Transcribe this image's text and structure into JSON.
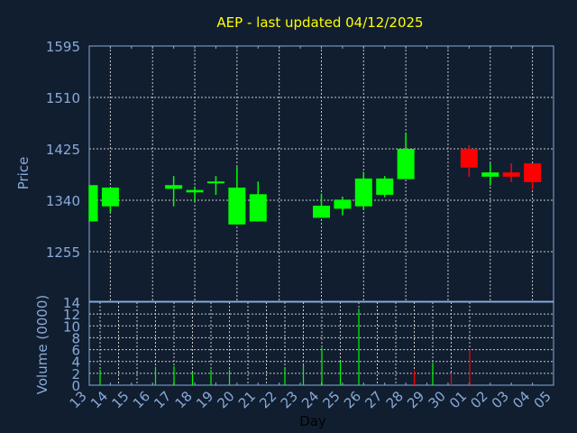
{
  "chart_data": [
    {
      "type": "candlestick",
      "title": "AEP - last updated 04/12/2025",
      "ylabel": "Price",
      "xlabel": "Day",
      "ylim": [
        1173,
        1595
      ],
      "yticks": [
        1595,
        1510,
        1425,
        1340,
        1255
      ],
      "xticks": [
        "13",
        "14",
        "15",
        "16",
        "17",
        "18",
        "19",
        "20",
        "21",
        "22",
        "23",
        "24",
        "25",
        "26",
        "27",
        "28",
        "29",
        "30",
        "01",
        "02",
        "03",
        "04",
        "05"
      ],
      "grid": true,
      "colors": {
        "up": "#00ff00",
        "down": "#ff0000",
        "title": "#ffff00",
        "axis": "#88aad8",
        "background": "#111e30"
      },
      "candles": [
        {
          "day": "13",
          "open": 1305,
          "high": 1365,
          "low": 1305,
          "close": 1365
        },
        {
          "day": "14",
          "open": 1330,
          "high": 1361,
          "low": 1320,
          "close": 1361
        },
        {
          "day": "17",
          "open": 1359,
          "high": 1380,
          "low": 1330,
          "close": 1365
        },
        {
          "day": "18",
          "open": 1353,
          "high": 1363,
          "low": 1338,
          "close": 1357
        },
        {
          "day": "19",
          "open": 1369,
          "high": 1380,
          "low": 1349,
          "close": 1371
        },
        {
          "day": "20",
          "open": 1300,
          "high": 1395,
          "low": 1300,
          "close": 1361
        },
        {
          "day": "21",
          "open": 1305,
          "high": 1371,
          "low": 1305,
          "close": 1350
        },
        {
          "day": "24",
          "open": 1311,
          "high": 1351,
          "low": 1311,
          "close": 1331
        },
        {
          "day": "25",
          "open": 1326,
          "high": 1346,
          "low": 1315,
          "close": 1341
        },
        {
          "day": "26",
          "open": 1330,
          "high": 1387,
          "low": 1324,
          "close": 1376
        },
        {
          "day": "27",
          "open": 1349,
          "high": 1380,
          "low": 1345,
          "close": 1376
        },
        {
          "day": "28",
          "open": 1375,
          "high": 1452,
          "low": 1375,
          "close": 1425
        },
        {
          "day": "01",
          "open": 1425,
          "high": 1431,
          "low": 1379,
          "close": 1394
        },
        {
          "day": "02",
          "open": 1379,
          "high": 1401,
          "low": 1364,
          "close": 1386
        },
        {
          "day": "03",
          "open": 1386,
          "high": 1401,
          "low": 1370,
          "close": 1379
        },
        {
          "day": "04",
          "open": 1401,
          "high": 1401,
          "low": 1358,
          "close": 1370
        }
      ]
    },
    {
      "type": "bar",
      "ylabel": "Volume (0000)",
      "ylim": [
        0,
        14
      ],
      "yticks": [
        0,
        2,
        4,
        6,
        8,
        10,
        12,
        14
      ],
      "volumes": [
        {
          "day": "14",
          "value": 2.6,
          "dir": "up"
        },
        {
          "day": "17",
          "value": 3.1,
          "dir": "up"
        },
        {
          "day": "18",
          "value": 3.2,
          "dir": "up"
        },
        {
          "day": "19",
          "value": 2.1,
          "dir": "up"
        },
        {
          "day": "20",
          "value": 2.6,
          "dir": "up"
        },
        {
          "day": "21",
          "value": 2.6,
          "dir": "up"
        },
        {
          "day": "24",
          "value": 2.8,
          "dir": "up"
        },
        {
          "day": "25",
          "value": 3.4,
          "dir": "up"
        },
        {
          "day": "26",
          "value": 6.3,
          "dir": "up"
        },
        {
          "day": "27",
          "value": 4.0,
          "dir": "up"
        },
        {
          "day": "28",
          "value": 12.9,
          "dir": "up"
        },
        {
          "day": "01",
          "value": 2.5,
          "dir": "down"
        },
        {
          "day": "02",
          "value": 3.8,
          "dir": "up"
        },
        {
          "day": "03",
          "value": 2.0,
          "dir": "down"
        },
        {
          "day": "04",
          "value": 6.0,
          "dir": "down"
        }
      ]
    }
  ]
}
